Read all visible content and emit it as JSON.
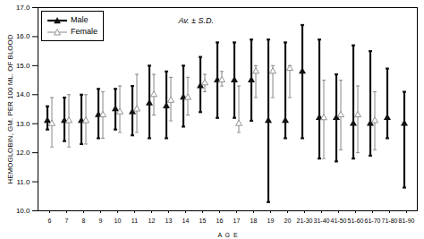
{
  "chart_data": {
    "type": "range",
    "xlabel": "A  G  E",
    "ylabel": "HEMOGLOBIN, GM. PER 100 ML. OF BLOOD",
    "annotation": "Av. ± S.D.",
    "categories": [
      "6",
      "7",
      "8",
      "9",
      "10",
      "11",
      "12",
      "13",
      "14",
      "15",
      "16",
      "17",
      "18",
      "19",
      "20",
      "21-30",
      "31-40",
      "41-50",
      "51-60",
      "61-70",
      "71-80",
      "81-90"
    ],
    "series": [
      {
        "name": "Male",
        "color": "#111111",
        "marker": "triangle",
        "values": [
          13.1,
          13.1,
          13.1,
          13.3,
          13.5,
          13.4,
          13.7,
          13.6,
          13.9,
          14.3,
          14.5,
          14.5,
          14.5,
          13.1,
          13.1,
          14.8,
          13.2,
          13.2,
          13.0,
          13.0,
          13.2,
          13.0
        ],
        "upper": [
          13.6,
          13.9,
          14.0,
          14.2,
          14.2,
          14.3,
          15.0,
          14.8,
          15.0,
          15.3,
          15.8,
          15.8,
          15.9,
          15.9,
          15.8,
          16.4,
          15.9,
          14.7,
          15.7,
          15.5,
          14.9,
          14.1
        ],
        "lower": [
          12.8,
          12.4,
          12.3,
          12.5,
          12.8,
          12.6,
          12.5,
          12.5,
          12.9,
          13.4,
          13.2,
          13.2,
          13.1,
          10.3,
          12.5,
          12.5,
          11.8,
          11.7,
          11.8,
          11.9,
          12.5,
          10.8
        ]
      },
      {
        "name": "Female",
        "color": "#888888",
        "marker": "triangle-open",
        "values": [
          13.0,
          13.1,
          13.1,
          13.3,
          13.4,
          13.5,
          14.0,
          13.8,
          13.9,
          14.4,
          14.5,
          13.0,
          14.8,
          14.8,
          14.9,
          null,
          13.2,
          13.3,
          13.3,
          13.1,
          null,
          null
        ],
        "upper": [
          13.9,
          14.0,
          14.0,
          14.1,
          14.3,
          14.7,
          14.7,
          14.6,
          14.6,
          14.7,
          14.8,
          14.3,
          15.0,
          15.0,
          15.0,
          null,
          14.5,
          14.5,
          14.3,
          14.1,
          null,
          null
        ],
        "lower": [
          12.2,
          12.2,
          12.3,
          12.5,
          12.7,
          12.7,
          13.3,
          13.1,
          13.3,
          14.1,
          14.3,
          12.7,
          13.9,
          13.9,
          13.9,
          null,
          11.8,
          12.1,
          12.0,
          12.1,
          null,
          null
        ]
      }
    ],
    "ylim": [
      10,
      17
    ],
    "yticks": [
      10,
      11,
      12,
      13,
      14,
      15,
      16,
      17
    ],
    "legend": "upper left"
  }
}
